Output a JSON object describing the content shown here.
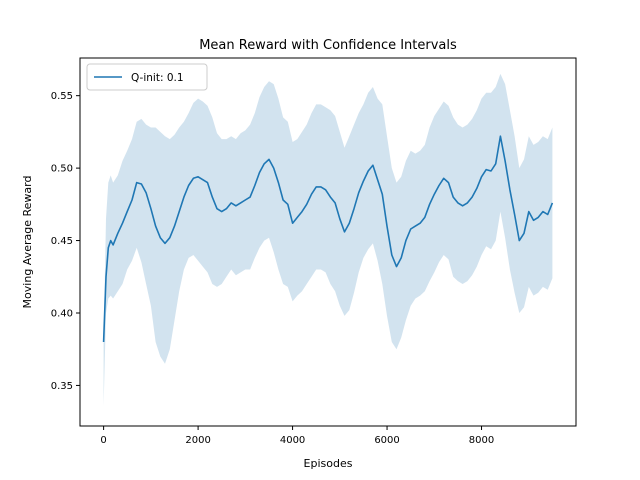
{
  "chart_data": {
    "type": "line",
    "title": "Mean Reward with Confidence Intervals",
    "xlabel": "Episodes",
    "ylabel": "Moving Average Reward",
    "xlim": [
      -500,
      10000
    ],
    "ylim": [
      0.322,
      0.576
    ],
    "xticks": [
      0,
      2000,
      4000,
      6000,
      8000
    ],
    "yticks": [
      0.35,
      0.4,
      0.45,
      0.5,
      0.55
    ],
    "xtick_labels": [
      "0",
      "2000",
      "4000",
      "6000",
      "8000"
    ],
    "ytick_labels": [
      "0.35",
      "0.40",
      "0.45",
      "0.50",
      "0.55"
    ],
    "grid": false,
    "legend": {
      "position": "top-left",
      "entries": [
        "Q-init: 0.1"
      ]
    },
    "colors": {
      "line": "#1f77b4",
      "band": "#a6c8e0"
    },
    "series": [
      {
        "name": "Q-init: 0.1",
        "x": [
          0,
          50,
          100,
          150,
          200,
          300,
          400,
          500,
          600,
          700,
          800,
          900,
          1000,
          1100,
          1200,
          1300,
          1400,
          1500,
          1600,
          1700,
          1800,
          1900,
          2000,
          2100,
          2200,
          2300,
          2400,
          2500,
          2600,
          2700,
          2800,
          2900,
          3000,
          3100,
          3200,
          3300,
          3400,
          3500,
          3600,
          3700,
          3800,
          3900,
          4000,
          4100,
          4200,
          4300,
          4400,
          4500,
          4600,
          4700,
          4800,
          4900,
          5000,
          5100,
          5200,
          5300,
          5400,
          5500,
          5600,
          5700,
          5800,
          5900,
          6000,
          6100,
          6200,
          6300,
          6400,
          6500,
          6600,
          6700,
          6800,
          6900,
          7000,
          7100,
          7200,
          7300,
          7400,
          7500,
          7600,
          7700,
          7800,
          7900,
          8000,
          8100,
          8200,
          8300,
          8400,
          8500,
          8600,
          8700,
          8800,
          8900,
          9000,
          9100,
          9200,
          9300,
          9400,
          9500
        ],
        "y": [
          0.38,
          0.425,
          0.445,
          0.45,
          0.447,
          0.455,
          0.462,
          0.47,
          0.478,
          0.49,
          0.489,
          0.483,
          0.472,
          0.46,
          0.452,
          0.448,
          0.452,
          0.46,
          0.47,
          0.48,
          0.488,
          0.493,
          0.494,
          0.492,
          0.49,
          0.48,
          0.472,
          0.47,
          0.472,
          0.476,
          0.474,
          0.476,
          0.478,
          0.48,
          0.488,
          0.497,
          0.503,
          0.506,
          0.5,
          0.49,
          0.478,
          0.475,
          0.462,
          0.466,
          0.47,
          0.475,
          0.482,
          0.487,
          0.487,
          0.485,
          0.48,
          0.476,
          0.465,
          0.456,
          0.462,
          0.472,
          0.483,
          0.491,
          0.498,
          0.502,
          0.492,
          0.482,
          0.46,
          0.44,
          0.432,
          0.438,
          0.45,
          0.458,
          0.46,
          0.462,
          0.466,
          0.475,
          0.482,
          0.488,
          0.493,
          0.49,
          0.48,
          0.476,
          0.474,
          0.476,
          0.48,
          0.486,
          0.494,
          0.499,
          0.498,
          0.503,
          0.522,
          0.505,
          0.485,
          0.468,
          0.45,
          0.455,
          0.47,
          0.464,
          0.466,
          0.47,
          0.468,
          0.476
        ],
        "ci_lower": [
          0.336,
          0.4,
          0.41,
          0.412,
          0.41,
          0.415,
          0.42,
          0.43,
          0.436,
          0.445,
          0.435,
          0.42,
          0.405,
          0.38,
          0.37,
          0.365,
          0.375,
          0.395,
          0.415,
          0.43,
          0.438,
          0.44,
          0.436,
          0.432,
          0.428,
          0.42,
          0.418,
          0.42,
          0.425,
          0.43,
          0.426,
          0.428,
          0.43,
          0.43,
          0.438,
          0.445,
          0.45,
          0.452,
          0.442,
          0.43,
          0.42,
          0.418,
          0.408,
          0.412,
          0.415,
          0.42,
          0.425,
          0.43,
          0.43,
          0.428,
          0.42,
          0.415,
          0.405,
          0.398,
          0.402,
          0.414,
          0.428,
          0.438,
          0.444,
          0.448,
          0.436,
          0.42,
          0.398,
          0.38,
          0.375,
          0.383,
          0.395,
          0.405,
          0.41,
          0.412,
          0.415,
          0.422,
          0.428,
          0.435,
          0.44,
          0.437,
          0.425,
          0.422,
          0.42,
          0.422,
          0.426,
          0.432,
          0.44,
          0.446,
          0.444,
          0.45,
          0.47,
          0.452,
          0.43,
          0.414,
          0.4,
          0.404,
          0.418,
          0.412,
          0.414,
          0.418,
          0.416,
          0.424
        ],
        "ci_upper": [
          0.382,
          0.465,
          0.49,
          0.495,
          0.49,
          0.495,
          0.505,
          0.512,
          0.52,
          0.532,
          0.534,
          0.53,
          0.528,
          0.528,
          0.525,
          0.522,
          0.52,
          0.523,
          0.528,
          0.532,
          0.538,
          0.545,
          0.548,
          0.546,
          0.543,
          0.535,
          0.524,
          0.52,
          0.52,
          0.522,
          0.52,
          0.524,
          0.526,
          0.53,
          0.538,
          0.549,
          0.556,
          0.56,
          0.558,
          0.548,
          0.535,
          0.532,
          0.518,
          0.52,
          0.525,
          0.53,
          0.538,
          0.544,
          0.544,
          0.542,
          0.54,
          0.536,
          0.525,
          0.514,
          0.522,
          0.53,
          0.538,
          0.544,
          0.552,
          0.556,
          0.548,
          0.544,
          0.522,
          0.5,
          0.49,
          0.494,
          0.505,
          0.512,
          0.51,
          0.512,
          0.516,
          0.528,
          0.536,
          0.541,
          0.546,
          0.543,
          0.535,
          0.53,
          0.528,
          0.53,
          0.534,
          0.54,
          0.548,
          0.552,
          0.552,
          0.556,
          0.565,
          0.558,
          0.54,
          0.522,
          0.5,
          0.506,
          0.522,
          0.516,
          0.518,
          0.522,
          0.52,
          0.528
        ]
      }
    ]
  }
}
